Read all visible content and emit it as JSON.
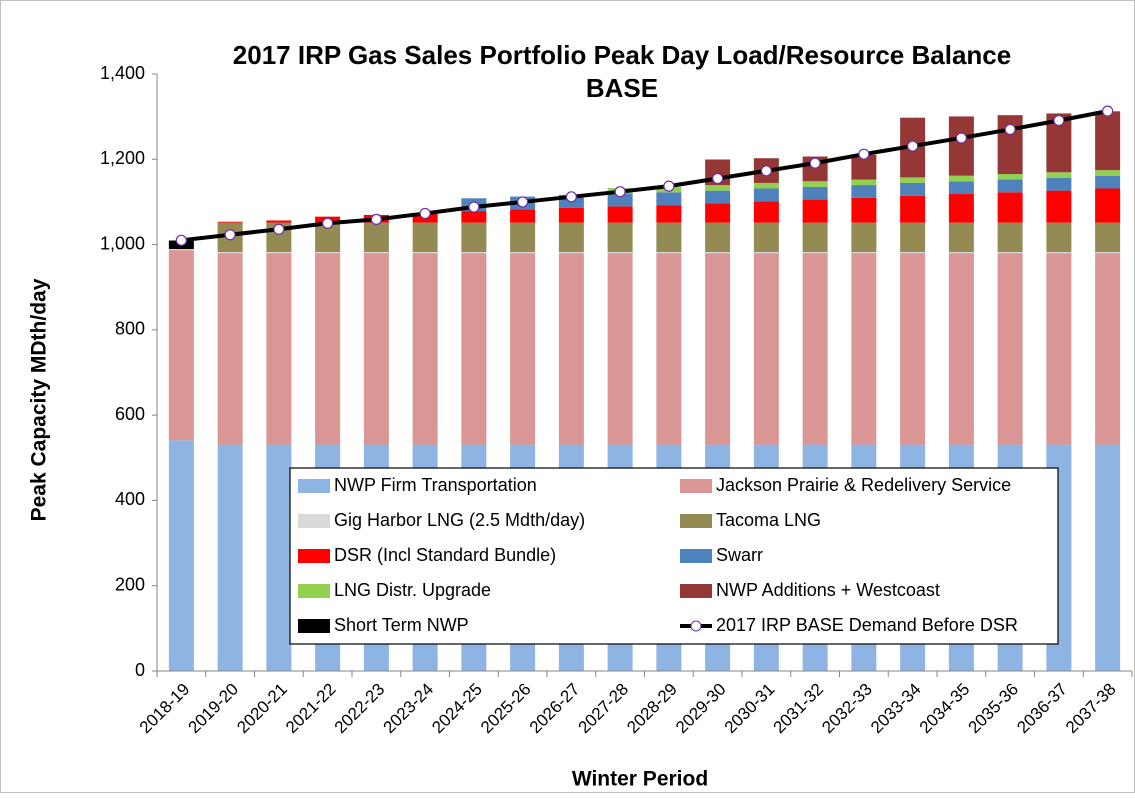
{
  "chart_data": {
    "type": "bar",
    "stacked": true,
    "title": "2017 IRP Gas Sales Portfolio Peak Day Load/Resource Balance",
    "subtitle": "BASE",
    "x_label": "Winter Period",
    "y_label": "Peak Capacity MDth/day",
    "categories": [
      "2018-19",
      "2019-20",
      "2020-21",
      "2021-22",
      "2022-23",
      "2023-24",
      "2024-25",
      "2025-26",
      "2026-27",
      "2027-28",
      "2028-29",
      "2029-30",
      "2030-31",
      "2031-32",
      "2032-33",
      "2033-34",
      "2034-35",
      "2035-36",
      "2036-37",
      "2037-38"
    ],
    "ylim": [
      0,
      1400
    ],
    "yticks": [
      0,
      200,
      400,
      600,
      800,
      {
        "value": 1000,
        "label": "1,000"
      },
      {
        "value": 1200,
        "label": "1,200"
      },
      {
        "value": 1400,
        "label": "1,400"
      }
    ],
    "grid": false,
    "series": [
      {
        "name": "NWP Firm Transportation",
        "color": "#8eb4e3",
        "values": [
          541,
          531,
          531,
          531,
          531,
          531,
          531,
          531,
          531,
          531,
          531,
          531,
          531,
          531,
          531,
          531,
          531,
          531,
          531,
          531
        ]
      },
      {
        "name": "Jackson Prairie & Redelivery Service",
        "color": "#d99694",
        "values": [
          446,
          449,
          449,
          449,
          449,
          449,
          449,
          449,
          449,
          449,
          449,
          449,
          449,
          449,
          449,
          449,
          449,
          449,
          449,
          449
        ]
      },
      {
        "name": "Gig Harbor LNG (2.5 Mdth/day)",
        "color": "#d9d9d9",
        "values": [
          2.5,
          2.5,
          2.5,
          2.5,
          2.5,
          2.5,
          2.5,
          2.5,
          2.5,
          2.5,
          2.5,
          2.5,
          2.5,
          2.5,
          2.5,
          2.5,
          2.5,
          2.5,
          2.5,
          2.5
        ]
      },
      {
        "name": "Tacoma LNG",
        "color": "#948a54",
        "values": [
          0,
          69,
          69,
          69,
          69,
          69,
          69,
          69,
          69,
          69,
          69,
          69,
          69,
          69,
          69,
          69,
          69,
          69,
          69,
          69
        ]
      },
      {
        "name": "DSR (Incl Standard Bundle)",
        "color": "#ff0000",
        "values": [
          0,
          2,
          5,
          14,
          18,
          22,
          27,
          31,
          35,
          38,
          41,
          45,
          50,
          54,
          58,
          63,
          67,
          71,
          75,
          80
        ]
      },
      {
        "name": "Swarr",
        "color": "#4f81bd",
        "values": [
          0,
          0,
          0,
          0,
          0,
          0,
          30,
          30,
          30,
          30,
          30,
          30,
          30,
          30,
          30,
          30,
          30,
          30,
          30,
          30
        ]
      },
      {
        "name": "LNG Distr. Upgrade",
        "color": "#92d050",
        "values": [
          0,
          0,
          0,
          0,
          0,
          0,
          0,
          0,
          0,
          13,
          13,
          13,
          13,
          13,
          13,
          13,
          13,
          13,
          13,
          13
        ]
      },
      {
        "name": "NWP Additions + Westcoast",
        "color": "#953735",
        "values": [
          0,
          0,
          0,
          0,
          0,
          0,
          0,
          0,
          0,
          0,
          0,
          60,
          58,
          58,
          58,
          140,
          139,
          138,
          138,
          138
        ]
      },
      {
        "name": "Short Term NWP",
        "color": "#000000",
        "values": [
          20,
          0,
          0,
          0,
          0,
          0,
          0,
          0,
          0,
          0,
          0,
          0,
          0,
          0,
          0,
          0,
          0,
          0,
          0,
          0
        ]
      },
      {
        "name": "2017 IRP BASE Demand Before DSR",
        "color": "#000000",
        "type": "line",
        "values": [
          1010,
          1023,
          1036,
          1050,
          1059,
          1073,
          1088,
          1100,
          1112,
          1124,
          1137,
          1155,
          1173,
          1191,
          1212,
          1231,
          1250,
          1270,
          1291,
          1313
        ]
      }
    ]
  }
}
